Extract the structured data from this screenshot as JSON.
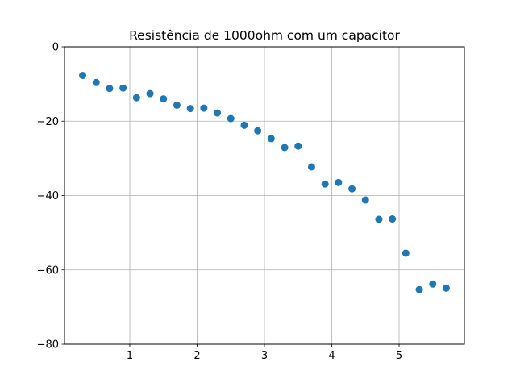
{
  "chart_data": {
    "type": "scatter",
    "title": "Resistência de 1000ohm com um capacitor",
    "xlabel": "",
    "ylabel": "",
    "xlim": [
      0.03,
      5.97
    ],
    "ylim": [
      -80,
      0
    ],
    "xticks": [
      1,
      2,
      3,
      4,
      5
    ],
    "yticks": [
      0,
      -20,
      -40,
      -60,
      -80
    ],
    "xtick_labels": [
      "1",
      "2",
      "3",
      "4",
      "5"
    ],
    "ytick_labels": [
      "0",
      "−20",
      "−40",
      "−60",
      "−80"
    ],
    "grid": true,
    "marker_color": "#1f77b4",
    "series": [
      {
        "x": [
          0.3,
          0.5,
          0.7,
          0.9,
          1.1,
          1.3,
          1.5,
          1.7,
          1.9,
          2.1,
          2.3,
          2.5,
          2.7,
          2.9,
          3.1,
          3.3,
          3.5,
          3.7,
          3.9,
          4.1,
          4.3,
          4.5,
          4.7,
          4.9,
          5.1,
          5.3,
          5.5,
          5.7
        ],
        "y": [
          -7.7,
          -9.6,
          -11.2,
          -11.1,
          -13.7,
          -12.6,
          -14.0,
          -15.7,
          -16.6,
          -16.5,
          -17.8,
          -19.3,
          -21.1,
          -22.6,
          -24.7,
          -27.1,
          -26.7,
          -32.3,
          -36.9,
          -36.5,
          -38.2,
          -41.2,
          -46.4,
          -46.3,
          -55.5,
          -65.3,
          -63.8,
          -64.9
        ]
      }
    ]
  }
}
